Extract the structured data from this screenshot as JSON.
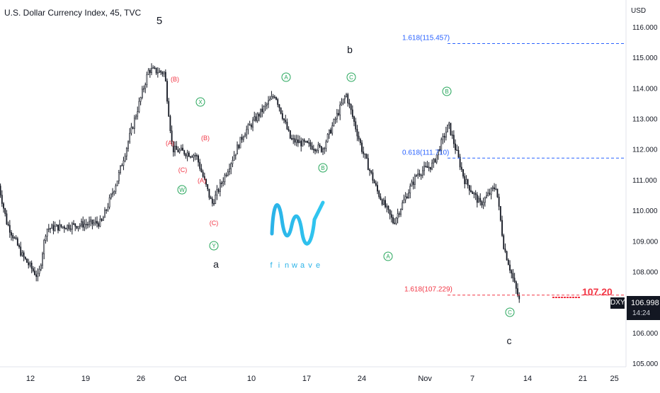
{
  "header": {
    "symbol_title": "U.S. Dollar Currency Index, 45, TVC",
    "currency": "USD"
  },
  "last_price": {
    "ticker": "DXY",
    "value": "106.998",
    "countdown": "14:24"
  },
  "logo": {
    "text": "finwave"
  },
  "colors": {
    "candle": "#131722",
    "fib_line": "#2962ff",
    "target_line": "#f23645",
    "wave_circle": "#26a65b",
    "wave_sub": "#f23645",
    "label_text": "#131722"
  },
  "chart_data": {
    "type": "candlestick",
    "y_axis": {
      "min": 105,
      "max": 116.5,
      "ticks": [
        "105.000",
        "106.000",
        "107.000",
        "108.000",
        "109.000",
        "110.000",
        "111.000",
        "112.000",
        "113.000",
        "114.000",
        "115.000",
        "116.000"
      ]
    },
    "x_axis": {
      "ticks": [
        "12",
        "19",
        "26",
        "Oct",
        "10",
        "17",
        "24",
        "Nov",
        "7",
        "14",
        "21",
        "25"
      ]
    },
    "price_path": [
      {
        "x": "Sep 8",
        "y": 110.8
      },
      {
        "x": "Sep 9",
        "y": 109.6
      },
      {
        "x": "Sep 11",
        "y": 108.5
      },
      {
        "x": "Sep 13",
        "y": 107.8
      },
      {
        "x": "Sep 14",
        "y": 109.4
      },
      {
        "x": "Sep 17",
        "y": 109.5
      },
      {
        "x": "Sep 21",
        "y": 109.6
      },
      {
        "x": "Sep 23",
        "y": 111.0
      },
      {
        "x": "Sep 25",
        "y": 112.8
      },
      {
        "x": "Sep 27",
        "y": 114.6
      },
      {
        "x": "Sep 29",
        "y": 114.5
      },
      {
        "x": "Sep 30",
        "y": 112.0
      },
      {
        "x": "Oct 3",
        "y": 111.8
      },
      {
        "x": "Oct 5",
        "y": 110.2
      },
      {
        "x": "Oct 9",
        "y": 112.5
      },
      {
        "x": "Oct 13",
        "y": 113.8
      },
      {
        "x": "Oct 15",
        "y": 112.3
      },
      {
        "x": "Oct 19",
        "y": 112.0
      },
      {
        "x": "Oct 22",
        "y": 113.8
      },
      {
        "x": "Oct 24",
        "y": 112.0
      },
      {
        "x": "Oct 26",
        "y": 110.6
      },
      {
        "x": "Oct 28",
        "y": 109.6
      },
      {
        "x": "Oct 31",
        "y": 111.2
      },
      {
        "x": "Nov 2",
        "y": 111.5
      },
      {
        "x": "Nov 4",
        "y": 112.8
      },
      {
        "x": "Nov 6",
        "y": 111.0
      },
      {
        "x": "Nov 8",
        "y": 110.2
      },
      {
        "x": "Nov 10",
        "y": 110.8
      },
      {
        "x": "Nov 11",
        "y": 108.8
      },
      {
        "x": "Nov 13",
        "y": 107.0
      }
    ],
    "fib_levels": [
      {
        "label": "1.618(115.457)",
        "value": 115.457
      },
      {
        "label": "0.618(111.710)",
        "value": 111.71
      },
      {
        "label": "1.618(107.229)",
        "value": 107.229
      }
    ],
    "target": {
      "label": "107.20",
      "value": 107.2
    },
    "wave_labels": {
      "major": [
        "5",
        "a",
        "b",
        "c"
      ],
      "circled": [
        "X",
        "W",
        "Y",
        "A",
        "B",
        "C",
        "B",
        "A",
        "C"
      ],
      "sub": [
        "(B)",
        "(A)",
        "(C)",
        "(B)",
        "(A)",
        "(C)"
      ]
    }
  }
}
